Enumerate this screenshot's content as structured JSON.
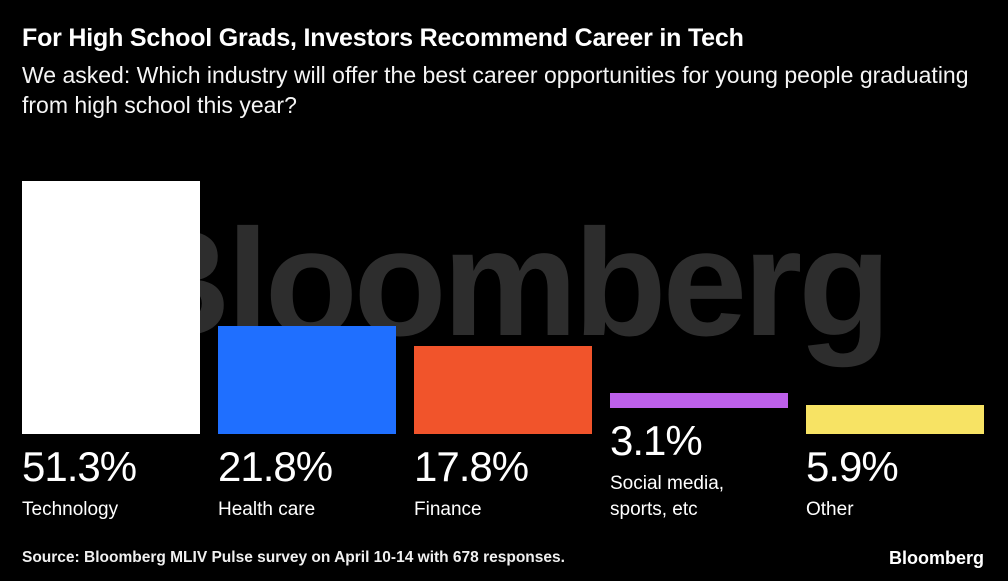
{
  "header": {
    "title": "For High School Grads, Investors Recommend Career in Tech",
    "subtitle": "We asked: Which industry will offer the best career opportunities for young people graduating from high school this year?"
  },
  "watermark": "Bloomberg",
  "chart_data": {
    "type": "bar",
    "title": "For High School Grads, Investors Recommend Career in Tech",
    "subtitle": "We asked: Which industry will offer the best career opportunities for young people graduating from high school this year?",
    "categories": [
      "Technology",
      "Health care",
      "Finance",
      "Social media, sports, etc",
      "Other"
    ],
    "values": [
      51.3,
      21.8,
      17.8,
      3.1,
      5.9
    ],
    "value_labels": [
      "51.3%",
      "21.8%",
      "17.8%",
      "3.1%",
      "5.9%"
    ],
    "colors": [
      "#ffffff",
      "#1f6fff",
      "#f1542b",
      "#bd60ea",
      "#f7e364"
    ],
    "xlabel": "",
    "ylabel": "",
    "ylim": [
      0,
      51.3
    ],
    "grid": false,
    "legend": "none",
    "background": "#000000"
  },
  "footer": {
    "source": "Source: Bloomberg MLIV Pulse survey on April 10-14 with 678 responses.",
    "logo": "Bloomberg"
  }
}
